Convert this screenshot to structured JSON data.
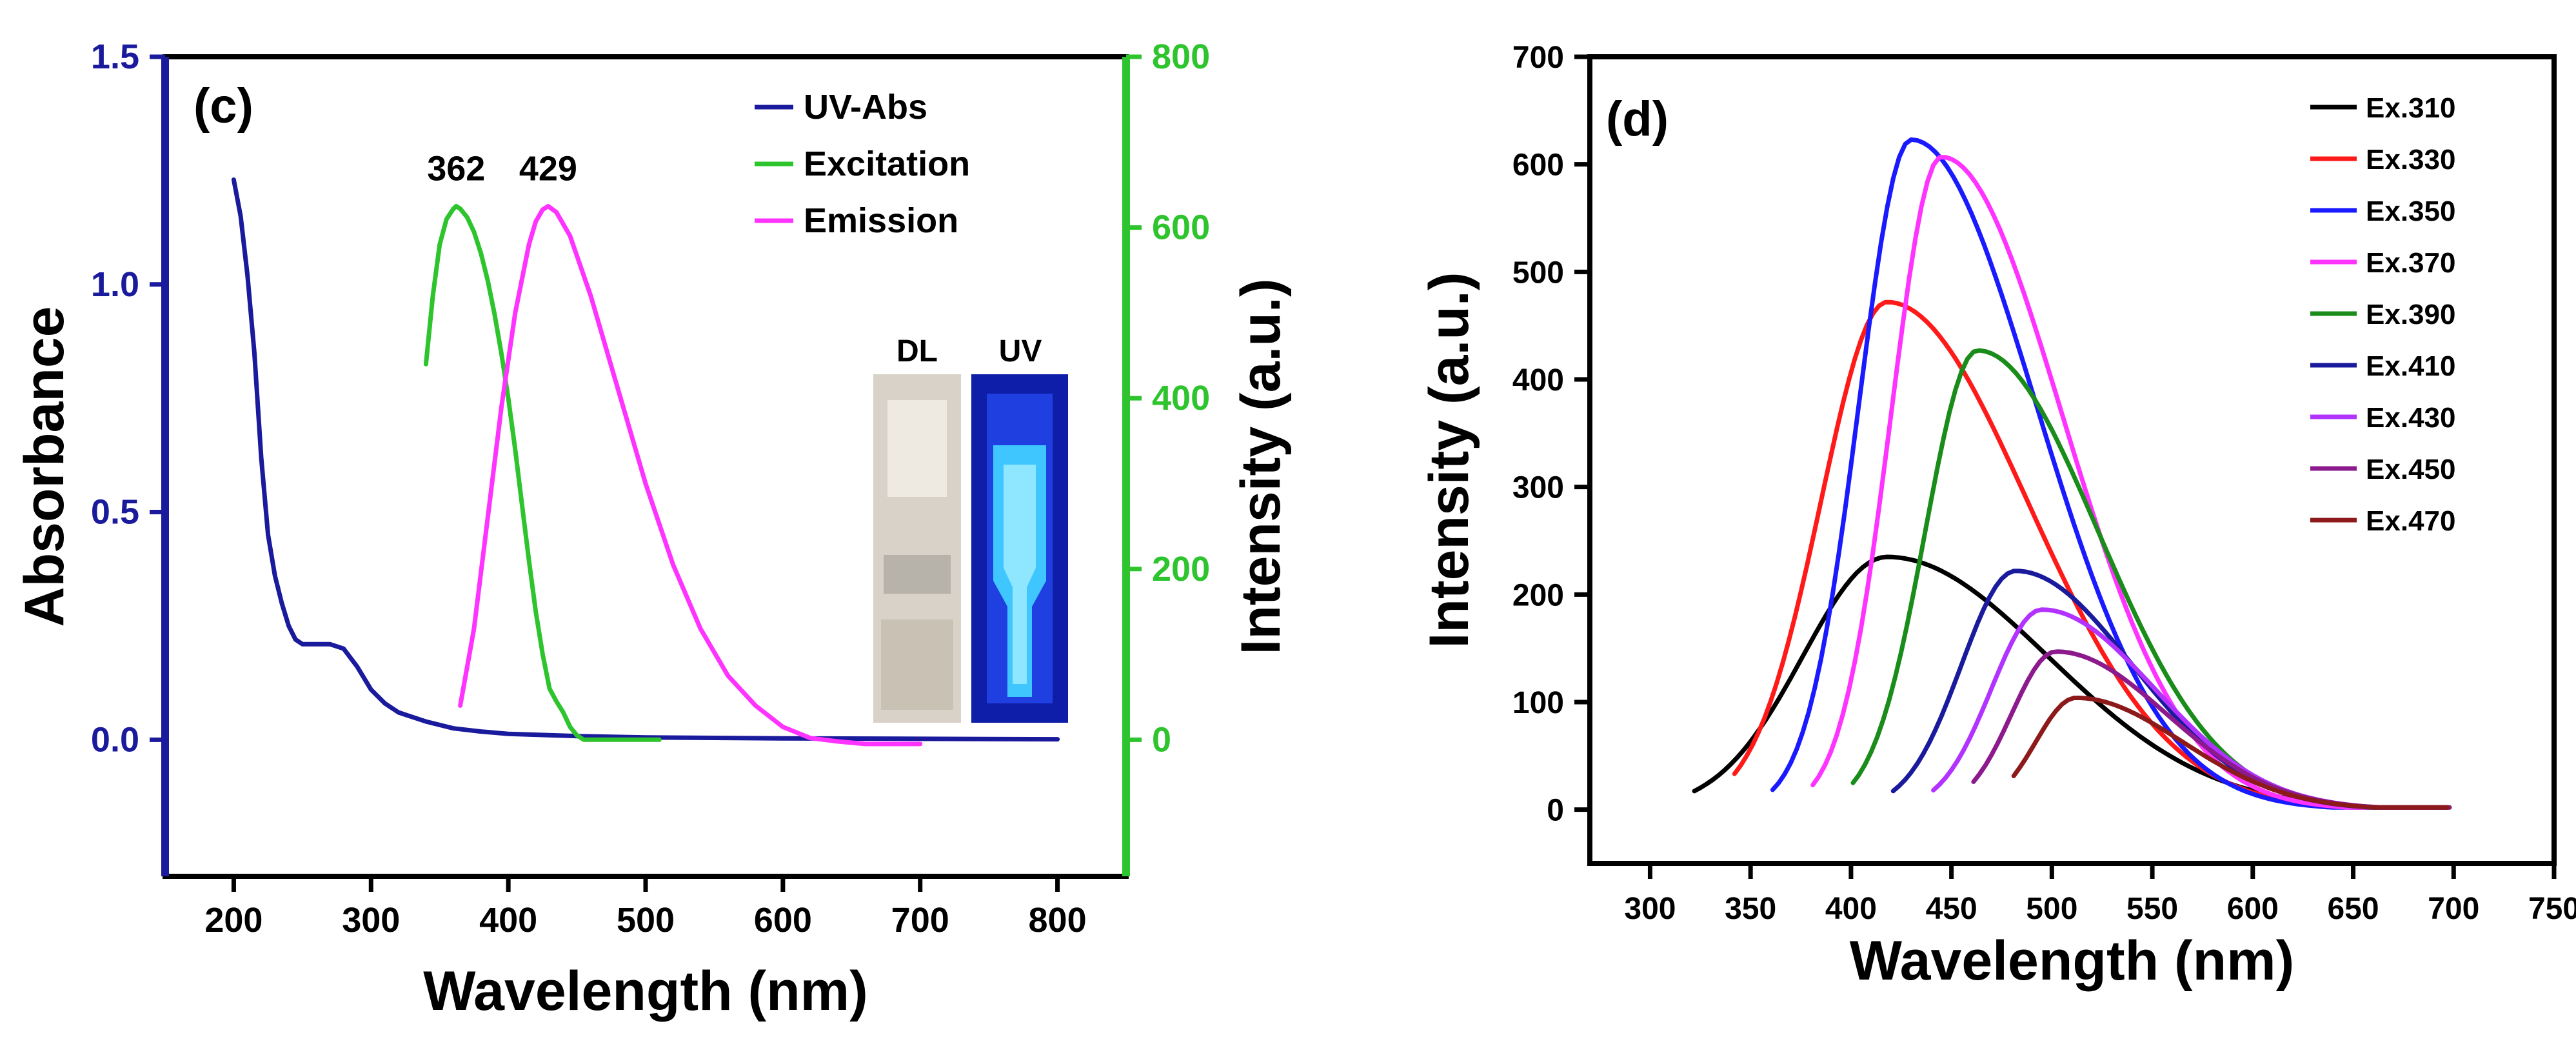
{
  "chart_data": [
    {
      "panel": "(c)",
      "type": "line",
      "xlabel": "Wavelength (nm)",
      "ylabel_left": "Absorbance",
      "ylabel_right": "Intensity (a.u.)",
      "xlim": [
        150,
        850
      ],
      "ylim_left": [
        -0.3,
        1.5
      ],
      "ylim_right": [
        -160,
        800
      ],
      "xticks": [
        200,
        300,
        400,
        500,
        600,
        700,
        800
      ],
      "yticks_left": [
        0.0,
        0.5,
        1.0,
        1.5
      ],
      "yticks_left_labels": [
        "0.0",
        "0.5",
        "1.0",
        "1.5"
      ],
      "yticks_right": [
        0,
        200,
        400,
        600,
        800
      ],
      "left_axis_color": "#1a1a9c",
      "right_axis_color": "#2ec42e",
      "peak_labels": [
        {
          "text": "362",
          "x": 362,
          "y": 625
        },
        {
          "text": "429",
          "x": 429,
          "y": 625
        }
      ],
      "inset_labels": [
        "DL",
        "UV"
      ],
      "legend": [
        "UV-Abs",
        "Excitation",
        "Emission"
      ],
      "series": [
        {
          "name": "UV-Abs",
          "axis": "left",
          "color": "#1a1a9c",
          "x": [
            200,
            205,
            210,
            215,
            220,
            225,
            230,
            235,
            240,
            245,
            250,
            260,
            270,
            280,
            290,
            300,
            310,
            320,
            340,
            360,
            380,
            400,
            450,
            500,
            600,
            700,
            800
          ],
          "y": [
            1.23,
            1.15,
            1.02,
            0.85,
            0.62,
            0.45,
            0.36,
            0.3,
            0.25,
            0.22,
            0.21,
            0.21,
            0.21,
            0.2,
            0.16,
            0.11,
            0.08,
            0.06,
            0.04,
            0.025,
            0.018,
            0.013,
            0.008,
            0.005,
            0.003,
            0.002,
            0.001
          ]
        },
        {
          "name": "Excitation",
          "axis": "right",
          "color": "#2ec42e",
          "x": [
            340,
            345,
            350,
            355,
            360,
            362,
            365,
            370,
            375,
            380,
            385,
            390,
            395,
            400,
            405,
            410,
            415,
            420,
            425,
            430,
            435,
            440,
            445,
            450,
            455,
            460,
            480,
            510
          ],
          "y": [
            440,
            520,
            580,
            610,
            622,
            625,
            622,
            612,
            595,
            570,
            538,
            498,
            452,
            400,
            340,
            275,
            210,
            150,
            100,
            60,
            45,
            32,
            15,
            5,
            0,
            0,
            0,
            0
          ]
        },
        {
          "name": "Emission",
          "axis": "right",
          "color": "#ff33ff",
          "x": [
            365,
            375,
            385,
            395,
            405,
            415,
            420,
            425,
            429,
            435,
            445,
            460,
            480,
            500,
            520,
            540,
            560,
            580,
            600,
            620,
            640,
            660,
            680,
            700
          ],
          "y": [
            40,
            130,
            260,
            390,
            500,
            580,
            607,
            621,
            625,
            618,
            590,
            520,
            410,
            300,
            205,
            130,
            75,
            40,
            15,
            2,
            -2,
            -5,
            -5,
            -5
          ]
        }
      ]
    },
    {
      "panel": "(d)",
      "type": "line",
      "xlabel": "Wavelength (nm)",
      "ylabel": "Intensity (a.u.)",
      "xlim": [
        270,
        750
      ],
      "ylim": [
        -50,
        700
      ],
      "xticks": [
        300,
        350,
        400,
        450,
        500,
        550,
        600,
        650,
        700,
        750
      ],
      "yticks": [
        0,
        100,
        200,
        300,
        400,
        500,
        600,
        700
      ],
      "series": [
        {
          "name": "Ex.310",
          "color": "#000000",
          "start": 322,
          "peak_x": 418,
          "peak_y": 235,
          "sigma_l": 42,
          "sigma_r": 80
        },
        {
          "name": "Ex.330",
          "color": "#ff1a1a",
          "start": 342,
          "peak_x": 418,
          "peak_y": 472,
          "sigma_l": 33,
          "sigma_r": 70
        },
        {
          "name": "Ex.350",
          "color": "#1a1aff",
          "start": 361,
          "peak_x": 430,
          "peak_y": 623,
          "sigma_l": 26,
          "sigma_r": 62
        },
        {
          "name": "Ex.370",
          "color": "#ff33ff",
          "start": 381,
          "peak_x": 445,
          "peak_y": 607,
          "sigma_l": 25,
          "sigma_r": 60
        },
        {
          "name": "Ex.390",
          "color": "#1a8c1a",
          "start": 401,
          "peak_x": 463,
          "peak_y": 427,
          "sigma_l": 26,
          "sigma_r": 60
        },
        {
          "name": "Ex.410",
          "color": "#1a1a9c",
          "start": 421,
          "peak_x": 482,
          "peak_y": 222,
          "sigma_l": 27,
          "sigma_r": 58
        },
        {
          "name": "Ex.430",
          "color": "#b233ff",
          "start": 441,
          "peak_x": 495,
          "peak_y": 186,
          "sigma_l": 25,
          "sigma_r": 56
        },
        {
          "name": "Ex.450",
          "color": "#8c1a8c",
          "start": 461,
          "peak_x": 502,
          "peak_y": 147,
          "sigma_l": 22,
          "sigma_r": 55
        },
        {
          "name": "Ex.470",
          "color": "#8c1a1a",
          "start": 481,
          "peak_x": 512,
          "peak_y": 104,
          "sigma_l": 20,
          "sigma_r": 53
        }
      ]
    }
  ]
}
